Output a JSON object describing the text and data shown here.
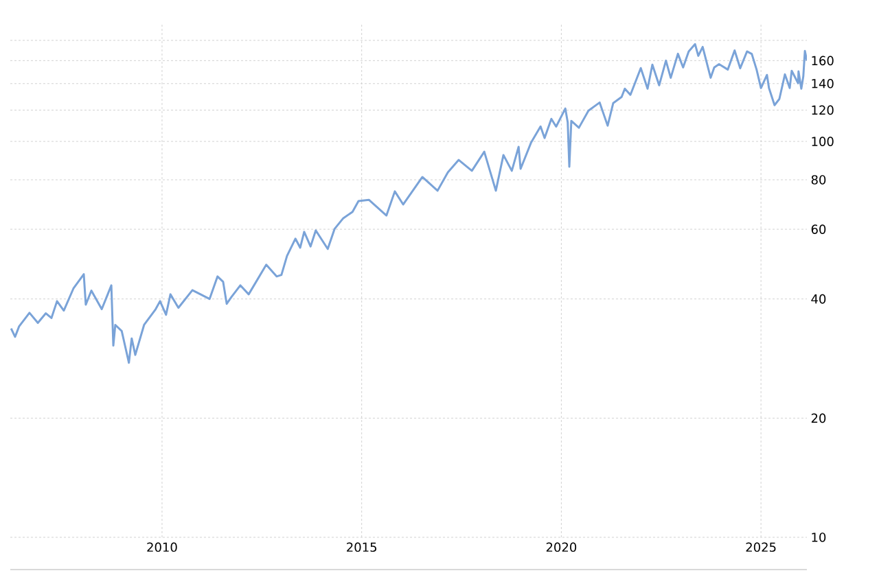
{
  "chart_data": {
    "type": "line",
    "log": true,
    "grid": true,
    "color": "#7aa3d8",
    "xlim": [
      2006.2,
      2026.15
    ],
    "ylim": [
      10,
      198
    ],
    "xticks": [
      2010,
      2015,
      2020,
      2025
    ],
    "yticks": [
      10,
      20,
      40,
      60,
      80,
      100,
      120,
      140,
      160,
      {
        "value": 180,
        "label": null
      }
    ],
    "x": [
      2006.22,
      2006.32,
      2006.42,
      2006.68,
      2006.89,
      2007.09,
      2007.23,
      2007.37,
      2007.54,
      2007.78,
      2008.04,
      2008.09,
      2008.23,
      2008.49,
      2008.64,
      2008.73,
      2008.78,
      2008.83,
      2008.99,
      2009.17,
      2009.24,
      2009.33,
      2009.55,
      2009.84,
      2009.95,
      2010.1,
      2010.21,
      2010.41,
      2010.76,
      2011.19,
      2011.39,
      2011.53,
      2011.62,
      2011.74,
      2011.96,
      2012.17,
      2012.61,
      2012.87,
      2012.99,
      2013.13,
      2013.34,
      2013.46,
      2013.56,
      2013.72,
      2013.85,
      2014.15,
      2014.32,
      2014.54,
      2014.77,
      2014.92,
      2015.18,
      2015.62,
      2015.83,
      2016.04,
      2016.52,
      2016.9,
      2017.16,
      2017.43,
      2017.76,
      2018.07,
      2018.36,
      2018.55,
      2018.76,
      2018.93,
      2018.98,
      2019.24,
      2019.48,
      2019.58,
      2019.75,
      2019.87,
      2020.1,
      2020.16,
      2020.2,
      2020.25,
      2020.44,
      2020.68,
      2020.96,
      2021.16,
      2021.3,
      2021.51,
      2021.59,
      2021.73,
      2021.99,
      2022.16,
      2022.28,
      2022.45,
      2022.62,
      2022.74,
      2022.92,
      2023.05,
      2023.19,
      2023.35,
      2023.43,
      2023.54,
      2023.74,
      2023.83,
      2023.95,
      2024.17,
      2024.34,
      2024.48,
      2024.65,
      2024.77,
      2024.89,
      2025.0,
      2025.15,
      2025.2,
      2025.34,
      2025.46,
      2025.6,
      2025.72,
      2025.77,
      2025.93,
      2025.94,
      2026.01,
      2026.06,
      2026.1,
      2026.15
    ],
    "values": [
      33.7,
      32.1,
      34.1,
      36.9,
      34.8,
      36.8,
      35.8,
      39.5,
      37.4,
      42.5,
      46.2,
      38.7,
      42.0,
      37.7,
      41.1,
      43.3,
      30.5,
      34.4,
      33.2,
      27.6,
      31.8,
      28.9,
      34.4,
      37.7,
      39.5,
      36.5,
      41.1,
      38.0,
      42.1,
      40.0,
      45.6,
      44.2,
      38.9,
      40.5,
      43.3,
      41.1,
      48.8,
      45.6,
      46.0,
      51.4,
      56.8,
      53.9,
      59.1,
      54.3,
      59.6,
      53.5,
      60.1,
      64.0,
      66.4,
      70.7,
      71.2,
      65.0,
      74.8,
      69.3,
      81.3,
      75.1,
      83.6,
      89.8,
      84.3,
      94.2,
      75.1,
      92.4,
      84.3,
      96.9,
      85.3,
      99.2,
      109.1,
      102.0,
      114.0,
      109.0,
      121.1,
      111.8,
      86.3,
      112.7,
      108.3,
      119.6,
      125.4,
      109.6,
      125.0,
      129.5,
      135.9,
      131.1,
      153.2,
      135.9,
      156.3,
      138.6,
      160.0,
      144.8,
      166.5,
      153.8,
      168.8,
      176.1,
      164.5,
      173.3,
      144.8,
      153.8,
      156.8,
      151.9,
      169.8,
      153.0,
      168.8,
      166.3,
      151.9,
      136.4,
      147.2,
      136.4,
      123.5,
      128.0,
      147.7,
      136.4,
      150.8,
      140.3,
      150.3,
      135.9,
      146.0,
      169.2,
      160.0
    ]
  }
}
